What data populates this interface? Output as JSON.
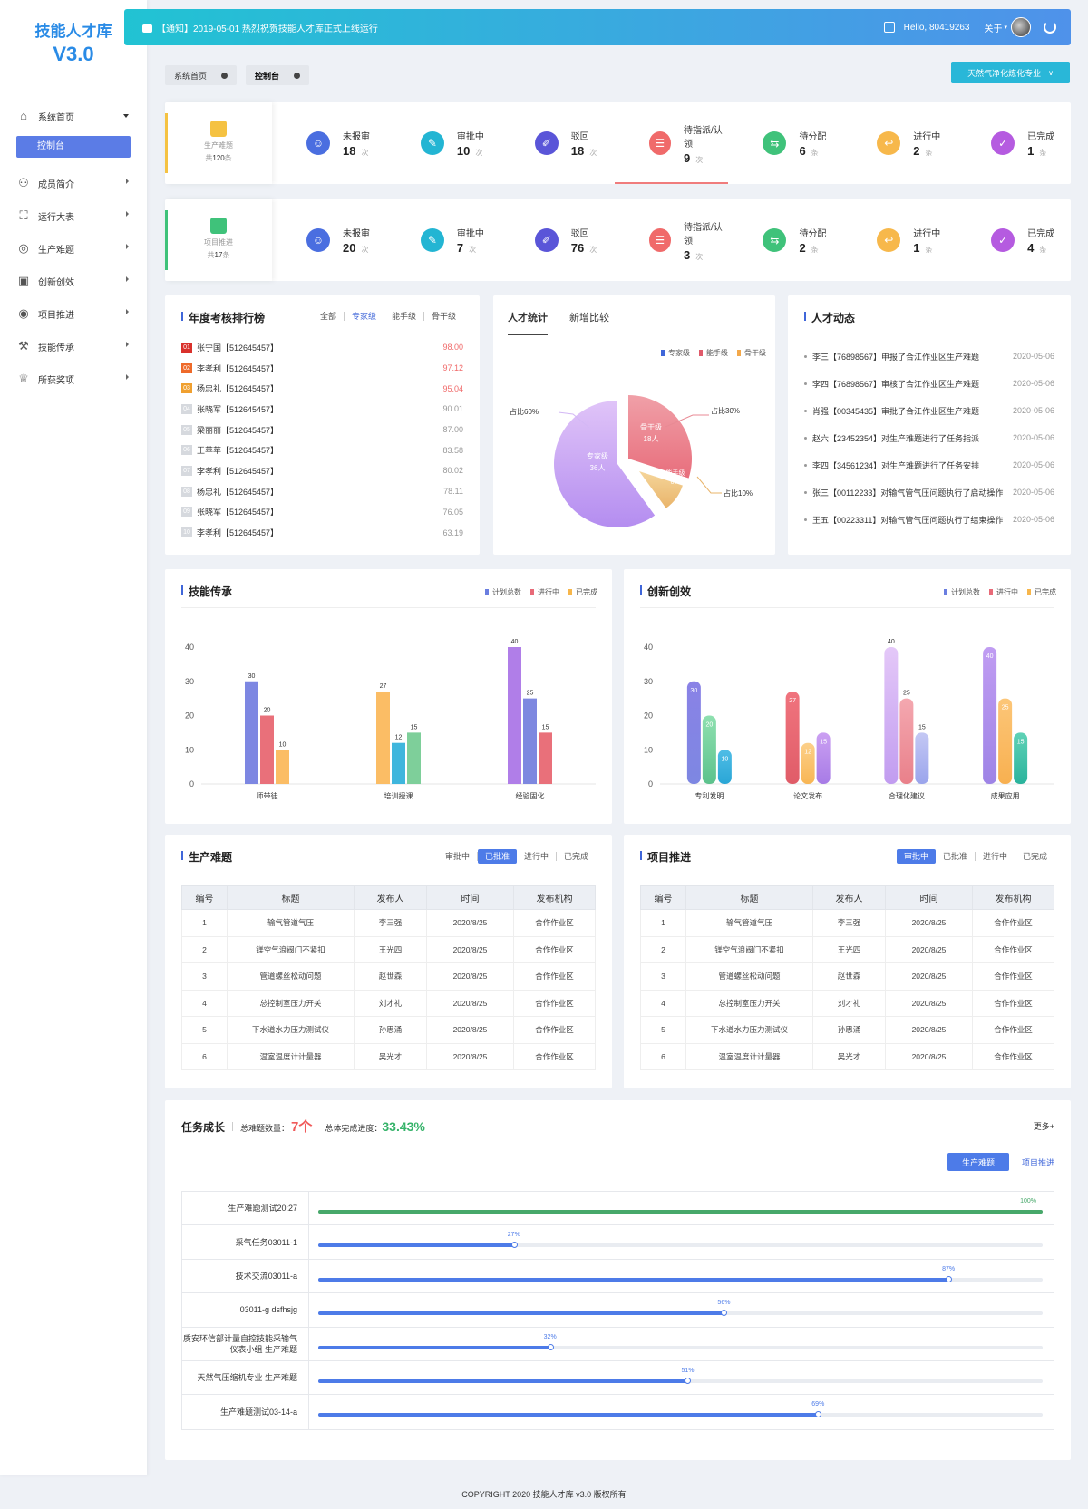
{
  "logo": {
    "line1": "技能人才库",
    "line2": "V3.0"
  },
  "menu": [
    {
      "label": "系统首页",
      "icon": "home-icon"
    },
    {
      "label": "控制台"
    },
    {
      "label": "成员简介",
      "icon": "user-icon"
    },
    {
      "label": "运行大表",
      "icon": "chart-icon"
    },
    {
      "label": "生产难题",
      "icon": "location-icon"
    },
    {
      "label": "创新创效",
      "icon": "presentation-icon"
    },
    {
      "label": "项目推进",
      "icon": "target-icon"
    },
    {
      "label": "技能传承",
      "icon": "wrench-icon"
    },
    {
      "label": "所获奖项",
      "icon": "trophy-icon"
    }
  ],
  "topbar": {
    "notice": "【通知】2019-05-01 热烈祝贺技能人才库正式上线运行",
    "hello": "Hello, 80419263",
    "about": "关于"
  },
  "tabs": [
    {
      "label": "系统首页"
    },
    {
      "label": "控制台"
    }
  ],
  "major": "天然气净化炼化专业",
  "stat1": {
    "title": "生产难题",
    "total_prefix": "共",
    "total": "120",
    "total_unit": "条",
    "accent": "#f5c242",
    "items": [
      {
        "label": "未报审",
        "value": "18",
        "unit": "次",
        "color": "#4a6ee0"
      },
      {
        "label": "审批中",
        "value": "10",
        "unit": "次",
        "color": "#23b5d3"
      },
      {
        "label": "驳回",
        "value": "18",
        "unit": "次",
        "color": "#5a55d8"
      },
      {
        "label": "待指派/认领",
        "value": "9",
        "unit": "次",
        "color": "#f06a6a"
      },
      {
        "label": "待分配",
        "value": "6",
        "unit": "条",
        "color": "#3fc27a"
      },
      {
        "label": "进行中",
        "value": "2",
        "unit": "条",
        "color": "#f7b84b"
      },
      {
        "label": "已完成",
        "value": "1",
        "unit": "条",
        "color": "#b55be0"
      }
    ]
  },
  "stat2": {
    "title": "项目推进",
    "total_prefix": "共",
    "total": "17",
    "total_unit": "条",
    "accent": "#3fc27a",
    "items": [
      {
        "label": "未报审",
        "value": "20",
        "unit": "次",
        "color": "#4a6ee0"
      },
      {
        "label": "审批中",
        "value": "7",
        "unit": "次",
        "color": "#23b5d3"
      },
      {
        "label": "驳回",
        "value": "76",
        "unit": "次",
        "color": "#5a55d8"
      },
      {
        "label": "待指派/认领",
        "value": "3",
        "unit": "次",
        "color": "#f06a6a"
      },
      {
        "label": "待分配",
        "value": "2",
        "unit": "条",
        "color": "#3fc27a"
      },
      {
        "label": "进行中",
        "value": "1",
        "unit": "条",
        "color": "#f7b84b"
      },
      {
        "label": "已完成",
        "value": "4",
        "unit": "条",
        "color": "#b55be0"
      }
    ]
  },
  "ranking": {
    "title": "年度考核排行榜",
    "filters": [
      "全部",
      "专家级",
      "能手级",
      "骨干级"
    ],
    "rows": [
      {
        "no": "01",
        "name": "张宁国【512645457】",
        "score": "98.00"
      },
      {
        "no": "02",
        "name": "李孝利【512645457】",
        "score": "97.12"
      },
      {
        "no": "03",
        "name": "杨忠礼【512645457】",
        "score": "95.04"
      },
      {
        "no": "04",
        "name": "张晓军【512645457】",
        "score": "90.01"
      },
      {
        "no": "05",
        "name": "梁丽丽【512645457】",
        "score": "87.00"
      },
      {
        "no": "06",
        "name": "王苹苹【512645457】",
        "score": "83.58"
      },
      {
        "no": "07",
        "name": "李孝利【512645457】",
        "score": "80.02"
      },
      {
        "no": "08",
        "name": "杨忠礼【512645457】",
        "score": "78.11"
      },
      {
        "no": "09",
        "name": "张晓军【512645457】",
        "score": "76.05"
      },
      {
        "no": "10",
        "name": "李孝利【512645457】",
        "score": "63.19"
      }
    ]
  },
  "talent": {
    "tabs": [
      "人才统计",
      "新增比较"
    ],
    "legend": [
      {
        "name": "专家级",
        "color": "#3f66d9"
      },
      {
        "name": "能手级",
        "color": "#e05a6a"
      },
      {
        "name": "骨干级",
        "color": "#f3a84a"
      }
    ],
    "slices": [
      {
        "name": "专家级",
        "count": "36人",
        "pct_label": "占比60%"
      },
      {
        "name": "骨干级",
        "count": "18人",
        "pct_label": "占比30%"
      },
      {
        "name": "能手级",
        "count": "6人",
        "pct_label": "占比10%"
      }
    ]
  },
  "dynamics": {
    "title": "人才动态",
    "rows": [
      {
        "text": "李三【76898567】申报了合江作业区生产难题",
        "date": "2020-05-06"
      },
      {
        "text": "李四【76898567】审核了合江作业区生产难题",
        "date": "2020-05-06"
      },
      {
        "text": "肖强【00345435】审批了合江作业区生产难题",
        "date": "2020-05-06"
      },
      {
        "text": "赵六【23452354】对生产难题进行了任务指派",
        "date": "2020-05-06"
      },
      {
        "text": "李四【34561234】对生产难题进行了任务安排",
        "date": "2020-05-06"
      },
      {
        "text": "张三【00112233】对输气管气压问题执行了启动操作",
        "date": "2020-05-06"
      },
      {
        "text": "王五【00223311】对输气管气压问题执行了结束操作",
        "date": "2020-05-06"
      }
    ]
  },
  "chart_data": [
    {
      "type": "bar",
      "title": "技能传承",
      "categories": [
        "师带徒",
        "培训授课",
        "经验固化"
      ],
      "series": [
        {
          "name": "计划总数",
          "values": [
            30,
            27,
            40
          ]
        },
        {
          "name": "进行中",
          "values": [
            20,
            12,
            25
          ]
        },
        {
          "name": "已完成",
          "values": [
            10,
            15,
            15
          ]
        }
      ],
      "ylim": [
        0,
        40
      ],
      "yticks": [
        0,
        10,
        20,
        30,
        40
      ]
    },
    {
      "type": "bar",
      "title": "创新创效",
      "categories": [
        "专利发明",
        "论文发布",
        "合理化建议",
        "成果应用"
      ],
      "series": [
        {
          "name": "计划总数",
          "values": [
            30,
            27,
            40,
            40
          ]
        },
        {
          "name": "进行中",
          "values": [
            20,
            12,
            25,
            25
          ]
        },
        {
          "name": "已完成",
          "values": [
            10,
            15,
            15,
            15
          ]
        }
      ],
      "ylim": [
        0,
        40
      ],
      "yticks": [
        0,
        10,
        20,
        30,
        40
      ]
    }
  ],
  "legendBars": [
    {
      "name": "计划总数",
      "color": "#6a7ee0"
    },
    {
      "name": "进行中",
      "color": "#e86a78"
    },
    {
      "name": "已完成",
      "color": "#f7b64b"
    }
  ],
  "prod": {
    "title": "生产难题",
    "filters": [
      "审批中",
      "已批准",
      "进行中",
      "已完成"
    ],
    "headers": [
      "编号",
      "标题",
      "发布人",
      "时间",
      "发布机构"
    ],
    "rows": [
      [
        "1",
        "输气管道气压",
        "李三强",
        "2020/8/25",
        "合作作业区"
      ],
      [
        "2",
        "镁空气浪阀门不紧扣",
        "王光四",
        "2020/8/25",
        "合作作业区"
      ],
      [
        "3",
        "管道螺丝松动问题",
        "赵世森",
        "2020/8/25",
        "合作作业区"
      ],
      [
        "4",
        "总控制室压力开关",
        "刘才礼",
        "2020/8/25",
        "合作作业区"
      ],
      [
        "5",
        "下水道水力压力测试仪",
        "孙思涌",
        "2020/8/25",
        "合作作业区"
      ],
      [
        "6",
        "温室温度计计量器",
        "吴光才",
        "2020/8/25",
        "合作作业区"
      ]
    ]
  },
  "proj": {
    "title": "项目推进",
    "filters": [
      "审批中",
      "已批准",
      "进行中",
      "已完成"
    ],
    "headers": [
      "编号",
      "标题",
      "发布人",
      "时间",
      "发布机构"
    ],
    "rows": [
      [
        "1",
        "输气管道气压",
        "李三强",
        "2020/8/25",
        "合作作业区"
      ],
      [
        "2",
        "镁空气浪阀门不紧扣",
        "王光四",
        "2020/8/25",
        "合作作业区"
      ],
      [
        "3",
        "管道螺丝松动问题",
        "赵世森",
        "2020/8/25",
        "合作作业区"
      ],
      [
        "4",
        "总控制室压力开关",
        "刘才礼",
        "2020/8/25",
        "合作作业区"
      ],
      [
        "5",
        "下水道水力压力测试仪",
        "孙思涌",
        "2020/8/25",
        "合作作业区"
      ],
      [
        "6",
        "温室温度计计量器",
        "吴光才",
        "2020/8/25",
        "合作作业区"
      ]
    ]
  },
  "task": {
    "title": "任务成长",
    "count_label": "总难题数量：",
    "count": "7个",
    "progress_label": "总体完成进度：",
    "progress": "33.43%",
    "more": "更多+",
    "btn1": "生产难题",
    "btn2": "项目推进",
    "rows": [
      {
        "name": "生产难题测试20:27",
        "pct": 100,
        "label": "100%"
      },
      {
        "name": "采气任务03011-1",
        "pct": 27,
        "label": "27%"
      },
      {
        "name": "技术交流03011-a",
        "pct": 87,
        "label": "87%"
      },
      {
        "name": "03011-g dsfhsjg",
        "pct": 56,
        "label": "56%"
      },
      {
        "name": "质安环信部计量自控技能采输气仪表小组 生产难题",
        "pct": 32,
        "label": "32%"
      },
      {
        "name": "天然气压缩机专业 生产难题",
        "pct": 51,
        "label": "51%"
      },
      {
        "name": "生产难题测试03-14-a",
        "pct": 69,
        "label": "69%"
      }
    ]
  },
  "footer": "COPYRIGHT 2020 技能人才库 v3.0  版权所有"
}
